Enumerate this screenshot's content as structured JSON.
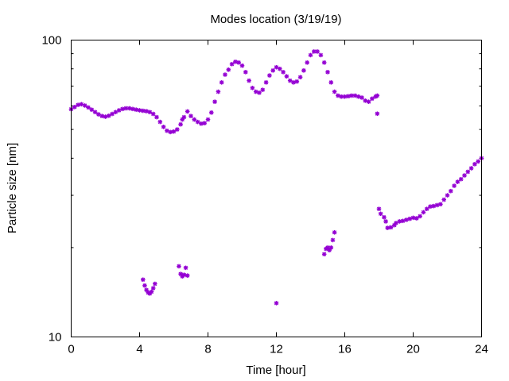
{
  "chart_data": {
    "type": "scatter",
    "title": "Modes location (3/19/19)",
    "xlabel": "Time [hour]",
    "ylabel": "Particle size [nm]",
    "xlim": [
      0,
      24
    ],
    "ylim": [
      10,
      100
    ],
    "yscale": "log",
    "grid": false,
    "xticks": [
      0,
      4,
      8,
      12,
      16,
      20,
      24
    ],
    "xtick_labels": [
      "0",
      "4",
      "8",
      "12",
      "16",
      "20",
      "24"
    ],
    "yticks": [
      10,
      100
    ],
    "ytick_labels": [
      "10",
      "100"
    ],
    "marker": "star",
    "color": "#9400d3",
    "series": [
      {
        "points": [
          [
            0.0,
            58.5
          ],
          [
            0.2,
            59.5
          ],
          [
            0.4,
            60.5
          ],
          [
            0.6,
            60.8
          ],
          [
            0.8,
            60.2
          ],
          [
            1.0,
            59.3
          ],
          [
            1.2,
            58.3
          ],
          [
            1.4,
            57.2
          ],
          [
            1.6,
            56.2
          ],
          [
            1.8,
            55.5
          ],
          [
            2.0,
            55.2
          ],
          [
            2.2,
            55.6
          ],
          [
            2.4,
            56.4
          ],
          [
            2.6,
            57.2
          ],
          [
            2.8,
            58.0
          ],
          [
            3.0,
            58.6
          ],
          [
            3.2,
            58.9
          ],
          [
            3.4,
            58.9
          ],
          [
            3.6,
            58.6
          ],
          [
            3.8,
            58.3
          ],
          [
            4.0,
            58.0
          ],
          [
            4.2,
            57.8
          ],
          [
            4.4,
            57.6
          ],
          [
            4.6,
            57.2
          ],
          [
            4.8,
            56.4
          ],
          [
            5.0,
            55.0
          ],
          [
            5.2,
            53.0
          ],
          [
            5.4,
            51.0
          ],
          [
            5.6,
            49.5
          ],
          [
            5.8,
            49.0
          ],
          [
            6.0,
            49.2
          ],
          [
            6.2,
            50.0
          ],
          [
            6.4,
            52.0
          ],
          [
            6.5,
            54.0
          ],
          [
            6.6,
            55.0
          ],
          [
            6.8,
            57.5
          ],
          [
            7.0,
            55.5
          ],
          [
            7.2,
            54.0
          ],
          [
            7.4,
            53.0
          ],
          [
            7.6,
            52.3
          ],
          [
            7.8,
            52.5
          ],
          [
            8.0,
            54.0
          ],
          [
            8.2,
            57.0
          ],
          [
            8.4,
            62.0
          ],
          [
            8.6,
            67.0
          ],
          [
            8.8,
            72.0
          ],
          [
            9.0,
            76.5
          ],
          [
            9.2,
            79.5
          ],
          [
            9.4,
            83.0
          ],
          [
            9.6,
            84.5
          ],
          [
            9.8,
            84.0
          ],
          [
            10.0,
            82.0
          ],
          [
            10.2,
            78.0
          ],
          [
            10.4,
            73.0
          ],
          [
            10.6,
            69.0
          ],
          [
            10.8,
            67.0
          ],
          [
            11.0,
            66.5
          ],
          [
            11.2,
            68.0
          ],
          [
            11.4,
            72.0
          ],
          [
            11.6,
            76.0
          ],
          [
            11.8,
            79.0
          ],
          [
            12.0,
            81.0
          ],
          [
            12.2,
            80.0
          ],
          [
            12.4,
            78.0
          ],
          [
            12.6,
            75.5
          ],
          [
            12.8,
            73.0
          ],
          [
            13.0,
            72.0
          ],
          [
            13.2,
            72.5
          ],
          [
            13.4,
            75.0
          ],
          [
            13.6,
            79.0
          ],
          [
            13.8,
            84.0
          ],
          [
            14.0,
            89.0
          ],
          [
            14.2,
            91.5
          ],
          [
            14.4,
            91.5
          ],
          [
            14.6,
            89.0
          ],
          [
            14.8,
            84.0
          ],
          [
            15.0,
            78.0
          ],
          [
            15.2,
            72.0
          ],
          [
            15.4,
            67.0
          ],
          [
            15.6,
            65.0
          ],
          [
            15.8,
            64.5
          ],
          [
            16.0,
            64.5
          ],
          [
            16.2,
            64.7
          ],
          [
            16.4,
            65.0
          ],
          [
            16.6,
            65.0
          ],
          [
            16.8,
            64.5
          ],
          [
            17.0,
            64.0
          ],
          [
            17.2,
            62.5
          ],
          [
            17.4,
            62.0
          ],
          [
            17.6,
            63.5
          ],
          [
            17.8,
            64.5
          ],
          [
            17.9,
            65.0
          ],
          [
            17.9,
            56.5
          ],
          [
            18.0,
            27.0
          ],
          [
            18.1,
            26.0
          ],
          [
            18.3,
            25.3
          ],
          [
            18.4,
            24.5
          ],
          [
            18.5,
            23.3
          ],
          [
            18.7,
            23.4
          ],
          [
            18.9,
            23.8
          ],
          [
            19.0,
            24.2
          ],
          [
            19.2,
            24.5
          ],
          [
            19.4,
            24.6
          ],
          [
            19.6,
            24.8
          ],
          [
            19.8,
            25.0
          ],
          [
            20.0,
            25.2
          ],
          [
            20.2,
            25.1
          ],
          [
            20.4,
            25.5
          ],
          [
            20.6,
            26.3
          ],
          [
            20.8,
            27.0
          ],
          [
            21.0,
            27.5
          ],
          [
            21.2,
            27.6
          ],
          [
            21.4,
            27.8
          ],
          [
            21.6,
            28.0
          ],
          [
            21.8,
            29.0
          ],
          [
            22.0,
            30.0
          ],
          [
            22.2,
            31.0
          ],
          [
            22.4,
            32.3
          ],
          [
            22.6,
            33.3
          ],
          [
            22.8,
            34.0
          ],
          [
            23.0,
            35.0
          ],
          [
            23.2,
            36.0
          ],
          [
            23.4,
            37.0
          ],
          [
            23.6,
            38.2
          ],
          [
            23.8,
            39.0
          ],
          [
            24.0,
            40.0
          ],
          [
            4.2,
            15.6
          ],
          [
            4.3,
            14.9
          ],
          [
            4.4,
            14.4
          ],
          [
            4.5,
            14.1
          ],
          [
            4.6,
            14.0
          ],
          [
            4.7,
            14.2
          ],
          [
            4.8,
            14.6
          ],
          [
            4.9,
            15.1
          ],
          [
            6.3,
            17.3
          ],
          [
            6.4,
            16.3
          ],
          [
            6.5,
            16.0
          ],
          [
            6.6,
            16.2
          ],
          [
            6.7,
            17.1
          ],
          [
            6.8,
            16.1
          ],
          [
            12.0,
            13.0
          ],
          [
            14.8,
            19.0
          ],
          [
            14.9,
            19.8
          ],
          [
            15.0,
            20.0
          ],
          [
            15.1,
            19.6
          ],
          [
            15.2,
            20.0
          ],
          [
            15.3,
            21.2
          ],
          [
            15.4,
            22.5
          ]
        ]
      }
    ]
  }
}
